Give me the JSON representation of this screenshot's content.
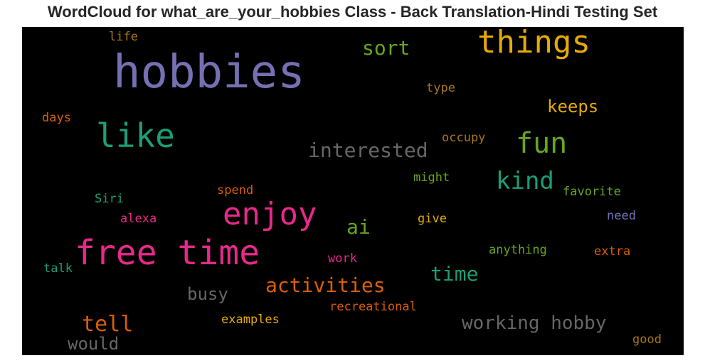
{
  "title": "WordCloud for what_are_your_hobbies Class - Back Translation-Hindi Testing Set",
  "words": [
    {
      "text": "hobbies",
      "color": "#7570b3"
    },
    {
      "text": "things",
      "color": "#e6ab02"
    },
    {
      "text": "free time",
      "color": "#e7298a"
    },
    {
      "text": "enjoy",
      "color": "#e7298a"
    },
    {
      "text": "like",
      "color": "#1b9e77"
    },
    {
      "text": "fun",
      "color": "#66a61e"
    },
    {
      "text": "kind",
      "color": "#1b9e77"
    },
    {
      "text": "interested",
      "color": "#666666"
    },
    {
      "text": "activities",
      "color": "#d95f02"
    },
    {
      "text": "sort",
      "color": "#66a61e"
    },
    {
      "text": "working hobby",
      "color": "#666666"
    },
    {
      "text": "time",
      "color": "#1b9e77"
    },
    {
      "text": "tell",
      "color": "#d95f02"
    },
    {
      "text": "keeps",
      "color": "#e6ab02"
    },
    {
      "text": "busy",
      "color": "#666666"
    },
    {
      "text": "ai",
      "color": "#66a61e"
    },
    {
      "text": "would",
      "color": "#666666"
    },
    {
      "text": "recreational",
      "color": "#d95f02"
    },
    {
      "text": "examples",
      "color": "#e6ab02"
    },
    {
      "text": "anything",
      "color": "#66a61e"
    },
    {
      "text": "favorite",
      "color": "#66a61e"
    },
    {
      "text": "occupy",
      "color": "#a6761d"
    },
    {
      "text": "might",
      "color": "#66a61e"
    },
    {
      "text": "give",
      "color": "#e6ab02"
    },
    {
      "text": "spend",
      "color": "#d95f02"
    },
    {
      "text": "Siri",
      "color": "#1b9e77"
    },
    {
      "text": "alexa",
      "color": "#e7298a"
    },
    {
      "text": "work",
      "color": "#e7298a"
    },
    {
      "text": "extra",
      "color": "#d95f02"
    },
    {
      "text": "need",
      "color": "#7570b3"
    },
    {
      "text": "talk",
      "color": "#1b9e77"
    },
    {
      "text": "days",
      "color": "#d95f02"
    },
    {
      "text": "life",
      "color": "#a6761d"
    },
    {
      "text": "type",
      "color": "#a6761d"
    },
    {
      "text": "good",
      "color": "#a6761d"
    }
  ]
}
